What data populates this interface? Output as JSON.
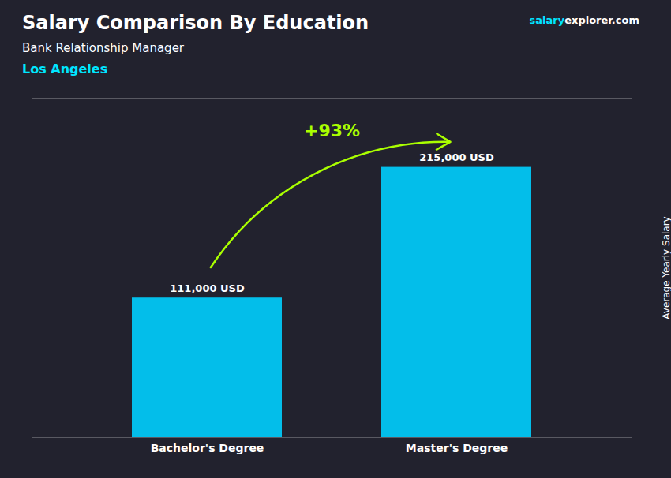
{
  "chart_data": {
    "type": "bar",
    "title": "Salary Comparison By Education",
    "subtitle": "Bank Relationship Manager",
    "annotations": [
      {
        "text": "Los Angeles",
        "color": "#00e5ff"
      },
      {
        "text": "salary",
        "color": "#00e5ff"
      },
      {
        "text": "explorer.com",
        "color": "#ffffff"
      },
      {
        "text": "+93%",
        "color": "#aaff00",
        "from": "Bachelor's Degree",
        "to": "Master's Degree"
      }
    ],
    "y_label": "Average Yearly Salary",
    "categories": [
      "Bachelor's Degree",
      "Master's Degree"
    ],
    "values": [
      111000,
      215000
    ],
    "value_labels": [
      "111,000 USD",
      "215,000 USD"
    ],
    "data_labels": true,
    "color": "#00CFFF",
    "ylim": [
      0,
      270000
    ],
    "grid": false,
    "tick_labels": "x"
  }
}
